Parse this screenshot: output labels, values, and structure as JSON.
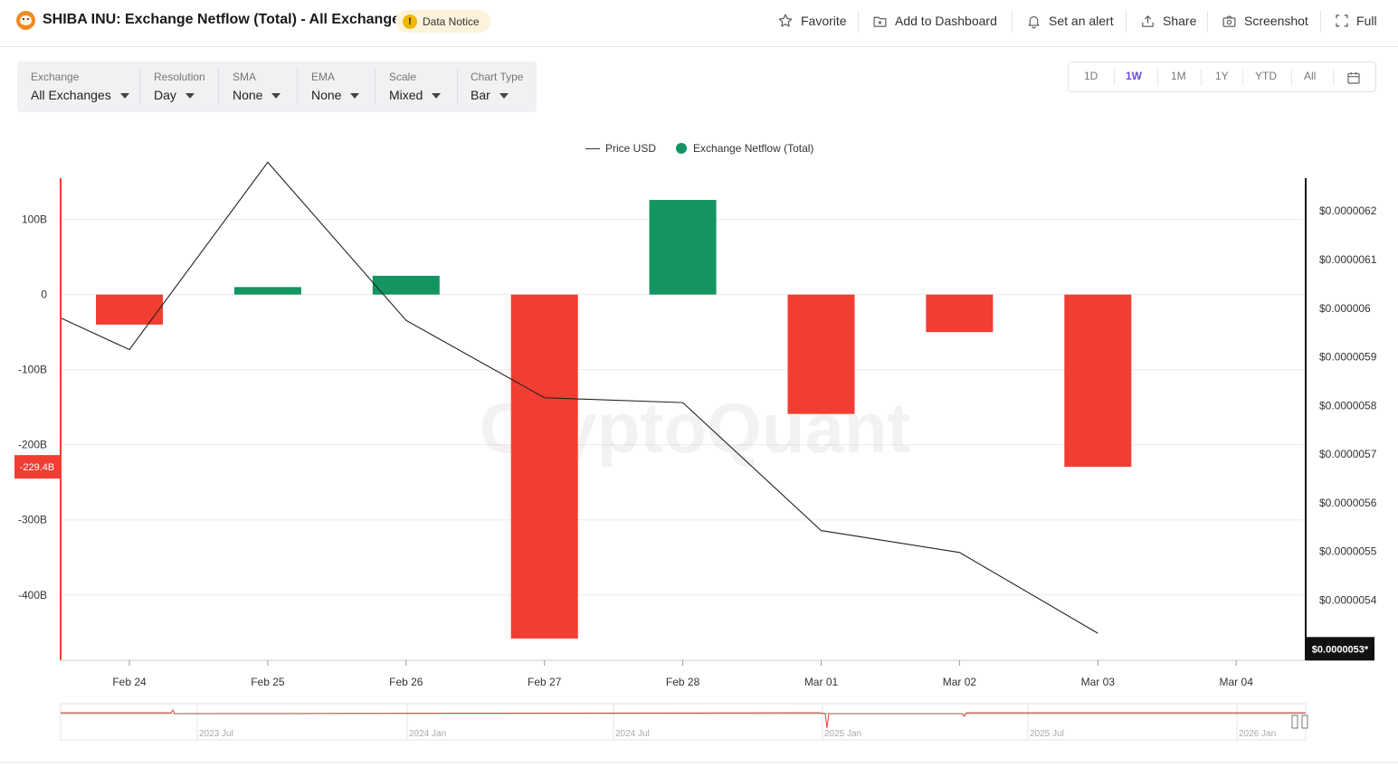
{
  "header": {
    "title": "SHIBA INU: Exchange Netflow (Total) - All Exchanges",
    "notice_label": "Data Notice",
    "notice_icon": "!",
    "actions": [
      {
        "label": "Favorite",
        "icon": "star-icon"
      },
      {
        "label": "Add to Dashboard",
        "icon": "dashboard-add-icon"
      },
      {
        "label": "Set an alert",
        "icon": "bell-icon"
      },
      {
        "label": "Share",
        "icon": "share-icon"
      },
      {
        "label": "Screenshot",
        "icon": "camera-icon"
      },
      {
        "label": "Full",
        "icon": "fullscreen-icon"
      }
    ]
  },
  "controls": [
    {
      "label": "Exchange",
      "value": "All Exchanges"
    },
    {
      "label": "Resolution",
      "value": "Day"
    },
    {
      "label": "SMA",
      "value": "None"
    },
    {
      "label": "EMA",
      "value": "None"
    },
    {
      "label": "Scale",
      "value": "Mixed"
    },
    {
      "label": "Chart Type",
      "value": "Bar"
    }
  ],
  "ranges": {
    "options": [
      "1D",
      "1W",
      "1M",
      "1Y",
      "YTD",
      "All"
    ],
    "active": "1W",
    "calendar_icon": "calendar-icon"
  },
  "watermark": "CryptoQuant",
  "colors": {
    "positive": "#139460",
    "negative": "#f23d33",
    "price_line": "#222222",
    "active_range": "#6a4fd6"
  },
  "chart_data": {
    "type": "bar",
    "categories": [
      "Feb 24",
      "Feb 25",
      "Feb 26",
      "Feb 27",
      "Feb 28",
      "Mar 01",
      "Mar 02",
      "Mar 03",
      "Mar 04"
    ],
    "legend": [
      "Price USD",
      "Exchange Netflow (Total)"
    ],
    "legend_placement": "top-center",
    "series": [
      {
        "name": "Exchange Netflow (Total)",
        "type": "bar",
        "axis": "left",
        "values": [
          -40,
          10,
          25,
          -458,
          126,
          -159,
          -50,
          -229.4,
          null
        ]
      },
      {
        "name": "Price USD",
        "type": "line",
        "axis": "right",
        "values": [
          5.915e-06,
          6.3e-06,
          5.975e-06,
          5.816e-06,
          5.806e-06,
          5.543e-06,
          5.498e-06,
          5.332e-06,
          null
        ],
        "start_value": 5.98e-06
      }
    ],
    "left_axis": {
      "ticks": [
        100,
        0,
        -100,
        -200,
        -300,
        -400
      ],
      "tick_labels": [
        "100B",
        "0",
        "-100B",
        "-200B",
        "-300B",
        "-400B"
      ],
      "range": [
        -487,
        155
      ],
      "marker_label": "-229.4B",
      "marker_value": -229.4
    },
    "right_axis": {
      "ticks": [
        6.2e-06,
        6.1e-06,
        6e-06,
        5.9e-06,
        5.8e-06,
        5.7e-06,
        5.6e-06,
        5.5e-06,
        5.4e-06
      ],
      "tick_labels": [
        "$0.0000062",
        "$0.0000061",
        "$0.000006",
        "$0.0000059",
        "$0.0000058",
        "$0.0000057",
        "$0.0000056",
        "$0.0000055",
        "$0.0000054"
      ],
      "range": [
        5.2764e-06,
        6.2673e-06
      ],
      "marker_label": "$0.0000053*",
      "marker_value": 5.3e-06
    },
    "grid": true
  },
  "navigator": {
    "labels": [
      "2023 Jul",
      "2024 Jan",
      "2024 Jul",
      "2025 Jan",
      "2025 Jul",
      "2026 Jan"
    ]
  }
}
